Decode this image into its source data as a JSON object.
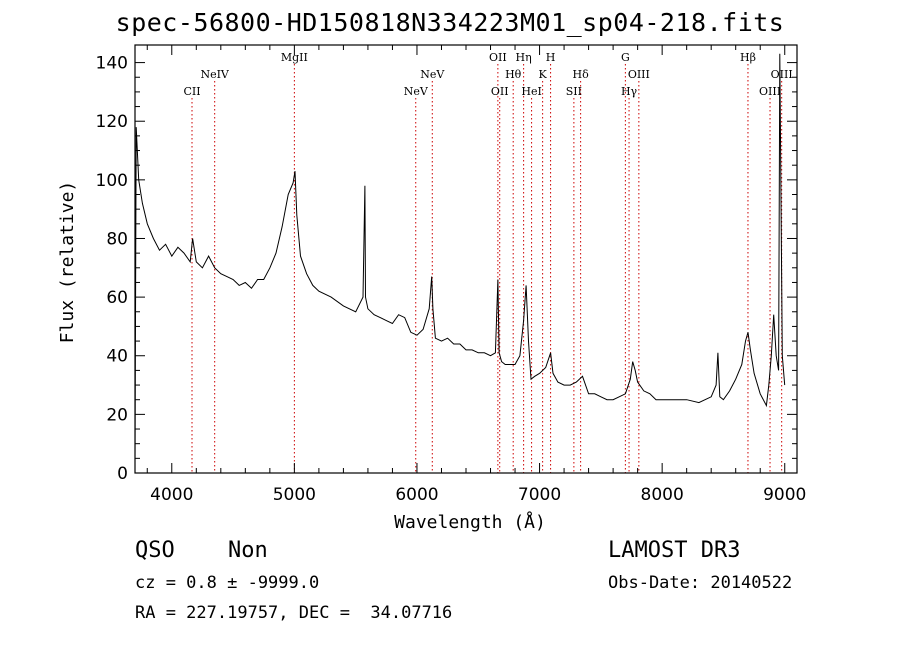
{
  "header": {
    "title": "spec-56800-HD150818N334223M01_sp04-218.fits"
  },
  "info": {
    "class_label": "QSO",
    "subclass_label": "Non",
    "survey_label": "LAMOST DR3",
    "cz_label": "cz = 0.8 ± -9999.0",
    "obs_date_label": "Obs-Date: 20140522",
    "coords_label": "RA = 227.19757, DEC =  34.07716"
  },
  "chart_data": {
    "type": "line",
    "xlabel": "Wavelength (Å)",
    "ylabel": "Flux (relative)",
    "xlim": [
      3700,
      9100
    ],
    "ylim": [
      0,
      146
    ],
    "x_ticks": [
      4000,
      5000,
      6000,
      7000,
      8000,
      9000
    ],
    "y_ticks": [
      0,
      20,
      40,
      60,
      80,
      100,
      120,
      140
    ],
    "line_color": "#000000",
    "marker_color": "#cc0000",
    "series": [
      {
        "x": [
          3700,
          3710,
          3730,
          3760,
          3800,
          3850,
          3900,
          3950,
          4000,
          4050,
          4100,
          4150,
          4170,
          4200,
          4250,
          4300,
          4350,
          4400,
          4450,
          4500,
          4550,
          4600,
          4650,
          4700,
          4750,
          4800,
          4850,
          4900,
          4950,
          4990,
          5005,
          5020,
          5050,
          5100,
          5150,
          5200,
          5300,
          5400,
          5500,
          5560,
          5575,
          5580,
          5600,
          5650,
          5700,
          5750,
          5800,
          5850,
          5900,
          5950,
          6000,
          6050,
          6100,
          6120,
          6130,
          6150,
          6200,
          6250,
          6300,
          6350,
          6400,
          6450,
          6500,
          6550,
          6600,
          6640,
          6660,
          6670,
          6690,
          6720,
          6760,
          6800,
          6840,
          6870,
          6890,
          6910,
          6930,
          6960,
          7000,
          7050,
          7090,
          7110,
          7150,
          7200,
          7250,
          7300,
          7350,
          7400,
          7450,
          7500,
          7550,
          7600,
          7650,
          7700,
          7740,
          7760,
          7780,
          7800,
          7850,
          7900,
          7950,
          8000,
          8100,
          8200,
          8300,
          8400,
          8440,
          8455,
          8470,
          8500,
          8550,
          8600,
          8650,
          8680,
          8700,
          8720,
          8750,
          8800,
          8850,
          8870,
          8890,
          8910,
          8930,
          8950,
          8960,
          8980,
          9000
        ],
        "y": [
          5,
          118,
          100,
          92,
          85,
          80,
          76,
          78,
          74,
          77,
          75,
          72,
          80,
          72,
          70,
          74,
          70,
          68,
          67,
          66,
          64,
          65,
          63,
          66,
          66,
          70,
          75,
          84,
          95,
          99,
          103,
          88,
          74,
          68,
          64,
          62,
          60,
          57,
          55,
          60,
          98,
          60,
          56,
          54,
          53,
          52,
          51,
          54,
          53,
          48,
          47,
          49,
          56,
          67,
          56,
          46,
          45,
          46,
          44,
          44,
          42,
          42,
          41,
          41,
          40,
          41,
          66,
          41,
          38,
          37,
          37,
          37,
          40,
          52,
          64,
          45,
          32,
          33,
          34,
          36,
          41,
          34,
          31,
          30,
          30,
          31,
          33,
          27,
          27,
          26,
          25,
          25,
          26,
          27,
          32,
          38,
          35,
          31,
          28,
          27,
          25,
          25,
          25,
          25,
          24,
          26,
          30,
          41,
          26,
          25,
          28,
          32,
          37,
          45,
          48,
          42,
          34,
          27,
          23,
          30,
          40,
          54,
          40,
          35,
          143,
          40,
          30
        ]
      }
    ],
    "emission_lines": [
      {
        "label": "CII",
        "wavelength": 4165,
        "row": 2
      },
      {
        "label": "NeIV",
        "wavelength": 4350,
        "row": 1
      },
      {
        "label": "MgII",
        "wavelength": 5000,
        "row": 0
      },
      {
        "label": "NeV",
        "wavelength": 5990,
        "row": 2
      },
      {
        "label": "NeV",
        "wavelength": 6125,
        "row": 1
      },
      {
        "label": "OII",
        "wavelength": 6660,
        "row": 0
      },
      {
        "label": "OII",
        "wavelength": 6675,
        "row": 2
      },
      {
        "label": "Hθ",
        "wavelength": 6785,
        "row": 1
      },
      {
        "label": "Hη",
        "wavelength": 6870,
        "row": 0
      },
      {
        "label": "HeI",
        "wavelength": 6935,
        "row": 2
      },
      {
        "label": "K",
        "wavelength": 7025,
        "row": 1
      },
      {
        "label": "H",
        "wavelength": 7090,
        "row": 0
      },
      {
        "label": "SII",
        "wavelength": 7280,
        "row": 2
      },
      {
        "label": "Hδ",
        "wavelength": 7335,
        "row": 1
      },
      {
        "label": "G",
        "wavelength": 7700,
        "row": 0
      },
      {
        "label": "Hγ",
        "wavelength": 7730,
        "row": 2
      },
      {
        "label": "OIII",
        "wavelength": 7810,
        "row": 1
      },
      {
        "label": "Hβ",
        "wavelength": 8700,
        "row": 0
      },
      {
        "label": "OIII",
        "wavelength": 8880,
        "row": 2
      },
      {
        "label": "OIII",
        "wavelength": 8975,
        "row": 1
      }
    ]
  }
}
